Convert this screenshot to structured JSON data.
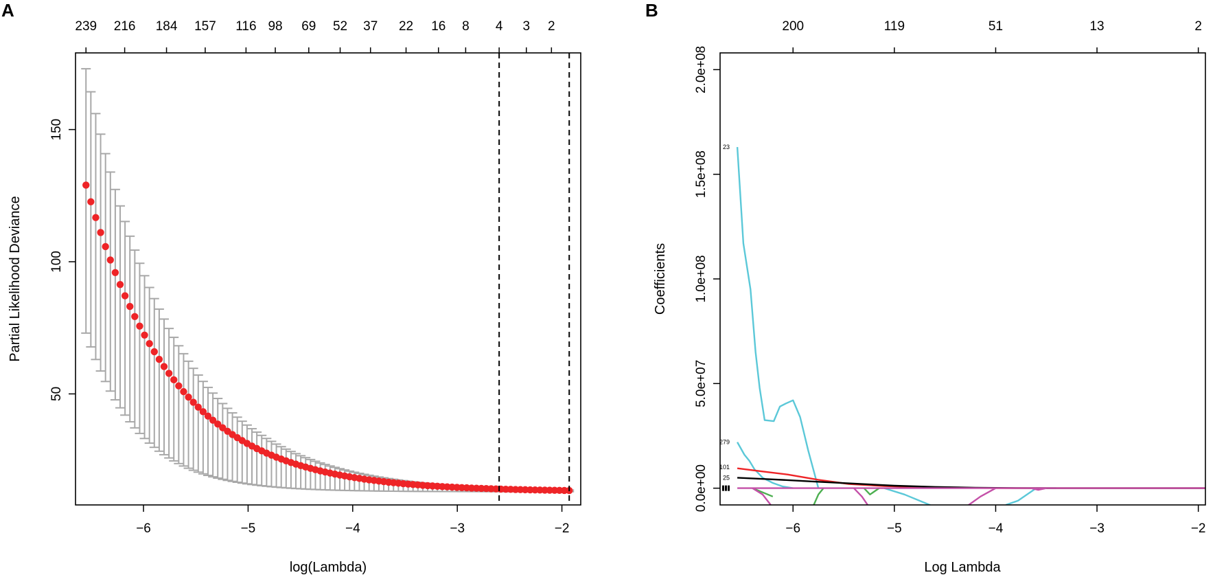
{
  "panel_labels": {
    "a": "A",
    "b": "B"
  },
  "chart_data": [
    {
      "type": "scatter",
      "panel": "A",
      "title": "",
      "xlabel": "log(Lambda)",
      "ylabel": "Partial Likelihood Deviance",
      "xlim": [
        -6.65,
        -1.82
      ],
      "ylim": [
        8,
        179
      ],
      "x_ticks": [
        -6,
        -5,
        -4,
        -3,
        -2
      ],
      "x_tick_labels": [
        "−6",
        "−5",
        "−4",
        "−3",
        "−2"
      ],
      "y_ticks": [
        50,
        100,
        150
      ],
      "y_tick_labels": [
        "50",
        "100",
        "150"
      ],
      "top_axis": {
        "x": [
          -6.55,
          -6.18,
          -5.78,
          -5.41,
          -5.02,
          -4.74,
          -4.42,
          -4.12,
          -3.83,
          -3.49,
          -3.18,
          -2.92,
          -2.6,
          -2.34,
          -2.1
        ],
        "labels": [
          "239",
          "216",
          "184",
          "157",
          "116",
          "98",
          "69",
          "52",
          "37",
          "22",
          "16",
          "8",
          "4",
          "3",
          "2"
        ]
      },
      "vlines": [
        -2.6,
        -1.93
      ],
      "x_start": -6.55,
      "x_end": -1.93,
      "n_points": 100,
      "curve": {
        "plateau": 13.0,
        "amplitude": 116,
        "decay_rate": 1.2
      },
      "error_bars": {
        "upper_amplitude": 160,
        "lower_amplitude": 73,
        "decay_rate": 1.2
      },
      "point_color": "#ee2427",
      "errorbar_color": "#a8a8a8",
      "vline_color": "#000000"
    },
    {
      "type": "line",
      "panel": "B",
      "title": "",
      "xlabel": "Log Lambda",
      "ylabel": "Coefficients",
      "xlim": [
        -6.72,
        -1.93
      ],
      "ylim": [
        -8000000,
        208000000
      ],
      "x_ticks": [
        -6,
        -5,
        -4,
        -3,
        -2
      ],
      "x_tick_labels": [
        "−6",
        "−5",
        "−4",
        "−3",
        "−2"
      ],
      "y_ticks": [
        0,
        50000000,
        100000000,
        150000000,
        200000000
      ],
      "y_tick_labels": [
        "0.0e+00",
        "5.0e+07",
        "1.0e+08",
        "1.5e+08",
        "2.0e+08"
      ],
      "top_axis": {
        "x": [
          -6.0,
          -5.0,
          -4.0,
          -3.0,
          -2.0
        ],
        "labels": [
          "200",
          "119",
          "51",
          "13",
          "2"
        ]
      },
      "var_labels": [
        {
          "text": "23",
          "y": 163000000
        },
        {
          "text": "279",
          "y": 22000000
        },
        {
          "text": "101",
          "y": 10000000
        },
        {
          "text": "25",
          "y": 5000000
        }
      ],
      "series": [
        {
          "name": "cyan-large",
          "color": "#5bc8d8",
          "x": [
            -6.55,
            -6.49,
            -6.42,
            -6.37,
            -6.33,
            -6.28,
            -6.19,
            -6.13,
            -6.07,
            -6.0,
            -5.93,
            -5.85,
            -5.75
          ],
          "values": [
            163000000,
            117000000,
            95000000,
            65000000,
            48000000,
            32500000,
            32000000,
            39000000,
            40500000,
            42000000,
            34000000,
            18000000,
            0
          ]
        },
        {
          "name": "cyan-mid",
          "color": "#5bc8d8",
          "x": [
            -6.55,
            -6.48,
            -6.43,
            -6.38,
            -6.3,
            -6.2,
            -6.1,
            -6.0
          ],
          "values": [
            22000000,
            16000000,
            13000000,
            9000000,
            5000000,
            2500000,
            800000,
            0
          ]
        },
        {
          "name": "cyan-negative",
          "color": "#5bc8d8",
          "x": [
            -5.1,
            -4.9,
            -4.7,
            -4.6
          ],
          "values": [
            0,
            -3000000,
            -7000000,
            -9000000
          ]
        },
        {
          "name": "cyan-negative-2",
          "color": "#5bc8d8",
          "x": [
            -3.9,
            -3.78,
            -3.6,
            -3.4
          ],
          "values": [
            -8000000,
            -6000000,
            0,
            0
          ]
        },
        {
          "name": "red",
          "color": "#ee2427",
          "x": [
            -6.55,
            -6.3,
            -6.05,
            -5.75,
            -5.45,
            -5.1,
            -4.7,
            -4.3,
            -3.9,
            -3.5,
            -1.93
          ],
          "values": [
            9500000,
            8000000,
            6500000,
            4000000,
            2000000,
            1000000,
            400000,
            150000,
            0,
            0,
            0
          ]
        },
        {
          "name": "black",
          "color": "#000000",
          "x": [
            -6.55,
            -6.2,
            -5.8,
            -5.4,
            -5.0,
            -4.6,
            -4.2,
            -3.8,
            -3.4,
            -1.93
          ],
          "values": [
            5000000,
            4200000,
            3200000,
            2200000,
            1200000,
            600000,
            250000,
            80000,
            0,
            0
          ]
        },
        {
          "name": "green-1",
          "color": "#4caf50",
          "x": [
            -6.4,
            -6.3,
            -6.2
          ],
          "values": [
            0,
            -2000000,
            -4000000
          ]
        },
        {
          "name": "green-2",
          "color": "#4caf50",
          "x": [
            -5.8,
            -5.75,
            -5.7
          ],
          "values": [
            -8500000,
            -3000000,
            0
          ]
        },
        {
          "name": "green-3",
          "color": "#4caf50",
          "x": [
            -5.3,
            -5.24,
            -5.15
          ],
          "values": [
            0,
            -3000000,
            0
          ]
        },
        {
          "name": "magenta",
          "color": "#c450a8",
          "x": [
            -6.55,
            -5.3,
            -5.22,
            -1.93
          ],
          "values": [
            0,
            0,
            0,
            0
          ]
        },
        {
          "name": "magenta-dip-1",
          "color": "#c450a8",
          "x": [
            -6.4,
            -6.3,
            -6.22
          ],
          "values": [
            0,
            -3000000,
            -8000000
          ]
        },
        {
          "name": "magenta-dip-2",
          "color": "#c450a8",
          "x": [
            -5.4,
            -5.32,
            -5.25
          ],
          "values": [
            0,
            -4000000,
            -9000000
          ]
        },
        {
          "name": "magenta-dip-3",
          "color": "#c450a8",
          "x": [
            -4.28,
            -4.15,
            -4.0
          ],
          "values": [
            -8500000,
            -4000000,
            0
          ]
        },
        {
          "name": "magenta-dip-4",
          "color": "#c450a8",
          "x": [
            -3.65,
            -3.58,
            -3.5
          ],
          "values": [
            0,
            -800000,
            0
          ]
        }
      ]
    }
  ]
}
